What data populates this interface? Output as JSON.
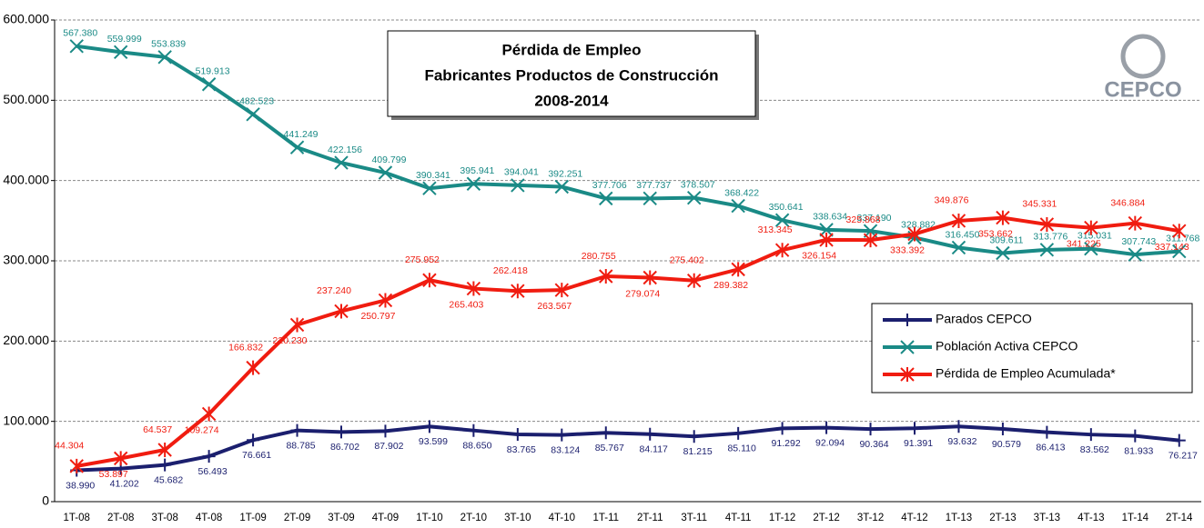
{
  "chart_data": {
    "type": "line",
    "title": [
      "Pérdida de Empleo",
      "Fabricantes Productos de Construcción",
      "2008-2014"
    ],
    "logo": "CEPCO",
    "categories": [
      "1T-08",
      "2T-08",
      "3T-08",
      "4T-08",
      "1T-09",
      "2T-09",
      "3T-09",
      "4T-09",
      "1T-10",
      "2T-10",
      "3T-10",
      "4T-10",
      "1T-11",
      "2T-11",
      "3T-11",
      "4T-11",
      "1T-12",
      "2T-12",
      "3T-12",
      "4T-12",
      "1T-13",
      "2T-13",
      "3T-13",
      "4T-13",
      "1T-14",
      "2T-14"
    ],
    "ylim": [
      0,
      600000
    ],
    "yticks": [
      0,
      {
        "value": 100000,
        "label": "100.000"
      },
      {
        "value": 200000,
        "label": "200.000"
      },
      {
        "value": 300000,
        "label": "300.000"
      },
      {
        "value": 400000,
        "label": "400.000"
      },
      {
        "value": 500000,
        "label": "500.000"
      },
      {
        "value": 600000,
        "label": "600.000"
      }
    ],
    "grid": true,
    "legend": "right",
    "series": [
      {
        "name": "Parados CEPCO",
        "color": "#1b1f6e",
        "marker": "plus",
        "values": [
          38990,
          41202,
          45682,
          56493,
          76661,
          88785,
          86702,
          87902,
          93599,
          88650,
          83765,
          83124,
          85767,
          84117,
          81215,
          85110,
          91292,
          92094,
          90364,
          91391,
          93632,
          90579,
          86413,
          83562,
          81933,
          76217
        ],
        "value_labels": [
          "38.990",
          "41.202",
          "45.682",
          "56.493",
          "76.661",
          "88.785",
          "86.702",
          "87.902",
          "93.599",
          "88.650",
          "83.765",
          "83.124",
          "85.767",
          "84.117",
          "81.215",
          "85.110",
          "91.292",
          "92.094",
          "90.364",
          "91.391",
          "93.632",
          "90.579",
          "86.413",
          "83.562",
          "81.933",
          "76.217"
        ]
      },
      {
        "name": "Población Activa CEPCO",
        "color": "#1a8a86",
        "marker": "x",
        "values": [
          567380,
          559999,
          553839,
          519913,
          482523,
          441249,
          422156,
          409799,
          390341,
          395941,
          394041,
          392251,
          377706,
          377737,
          378507,
          368422,
          350641,
          338634,
          337190,
          328882,
          316450,
          309611,
          313776,
          315031,
          307743,
          311768
        ],
        "value_labels": [
          "567.380",
          "559.999",
          "553.839",
          "519.913",
          "482.523",
          "441.249",
          "422.156",
          "409.799",
          "390.341",
          "395.941",
          "394.041",
          "392.251",
          "377.706",
          "377.737",
          "378.507",
          "368.422",
          "350.641",
          "338.634",
          "337.190",
          "328.882",
          "316.450",
          "309.611",
          "313.776",
          "315.031",
          "307.743",
          "311.768"
        ]
      },
      {
        "name": "Pérdida de Empleo Acumulada*",
        "color": "#f01c10",
        "marker": "star",
        "values": [
          44304,
          53897,
          64537,
          109274,
          166832,
          220230,
          237240,
          250797,
          275952,
          265403,
          262418,
          263567,
          280755,
          279074,
          275402,
          289382,
          313345,
          326154,
          325868,
          333392,
          349876,
          353662,
          345331,
          341225,
          346884,
          337143
        ],
        "value_labels": [
          "44.304",
          "53.897",
          "64.537",
          "109.274",
          "166.832",
          "220.230",
          "237.240",
          "250.797",
          "275.952",
          "265.403",
          "262.418",
          "263.567",
          "280.755",
          "279.074",
          "275.402",
          "289.382",
          "313.345",
          "326.154",
          "325.868",
          "333.392",
          "349.876",
          "353.662",
          "345.331",
          "341.225",
          "346.884",
          "337.143"
        ]
      }
    ]
  }
}
